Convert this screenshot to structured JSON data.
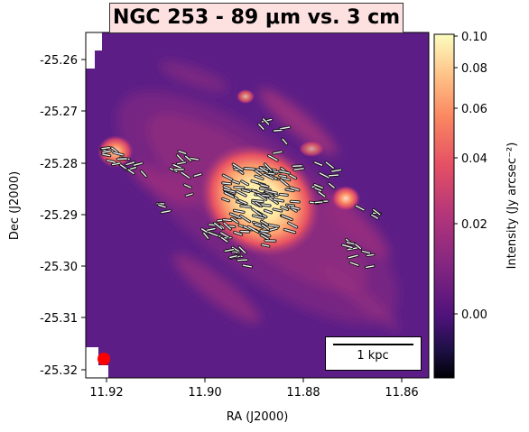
{
  "title": "NGC 253 - 89 μm vs. 3 cm",
  "xlabel": "RA (J2000)",
  "ylabel": "Dec (J2000)",
  "x_ticks": [
    "11.92",
    "11.90",
    "11.88",
    "11.86"
  ],
  "y_ticks": [
    "-25.26",
    "-25.27",
    "-25.28",
    "-25.29",
    "-25.30",
    "-25.31",
    "-25.32"
  ],
  "colorbar": {
    "label": "Intensity (Jy arcsec⁻²)",
    "ticks": [
      "0.10",
      "0.08",
      "0.06",
      "0.04",
      "0.02",
      "0.00"
    ],
    "colormap": "magma"
  },
  "scalebar_label": "1 kpc",
  "beam_color": "#ff0000"
}
